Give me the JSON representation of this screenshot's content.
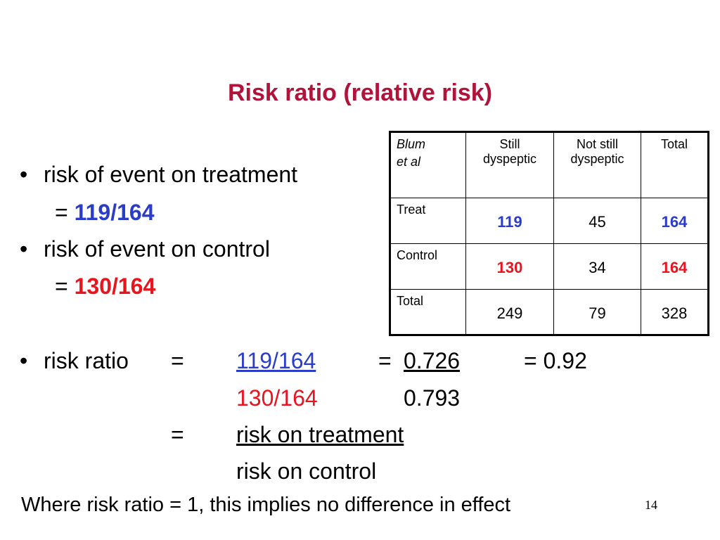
{
  "title": "Risk ratio (relative risk)",
  "bullets": {
    "b1": "risk of event on treatment",
    "b1_eq": "=",
    "b1_val": "119/164",
    "b2": "risk of event on control",
    "b2_eq": "=",
    "b2_val": "130/164",
    "b3": "risk ratio",
    "b3_eq": "=",
    "b3_num": "119/164",
    "b3_den": "130/164",
    "b3_eq2": "=",
    "b3_dec_num": "0.726",
    "b3_dec_den": "0.793",
    "b3_eq3": "= 0.92",
    "b3_eq4": "=",
    "b3_word_num": "risk on treatment",
    "b3_word_den": "risk on control"
  },
  "footer_text": "Where risk ratio = 1, this implies no difference in effect",
  "page_number": "14",
  "table": {
    "header": {
      "corner_line1": "Blum",
      "corner_line2": "et al",
      "col1_line1": "Still",
      "col1_line2": "dyspeptic",
      "col2_line1": "Not still",
      "col2_line2": "dyspeptic",
      "col3": "Total"
    },
    "rows": [
      {
        "label": "Treat",
        "c1": "119",
        "c2": "45",
        "c3": "164"
      },
      {
        "label": "Control",
        "c1": "130",
        "c2": "34",
        "c3": "164"
      },
      {
        "label": "Total",
        "c1": "249",
        "c2": "79",
        "c3": "328"
      }
    ]
  },
  "colors": {
    "title": "#b0143a",
    "blue": "#2a3cc8",
    "red": "#e8141e"
  }
}
